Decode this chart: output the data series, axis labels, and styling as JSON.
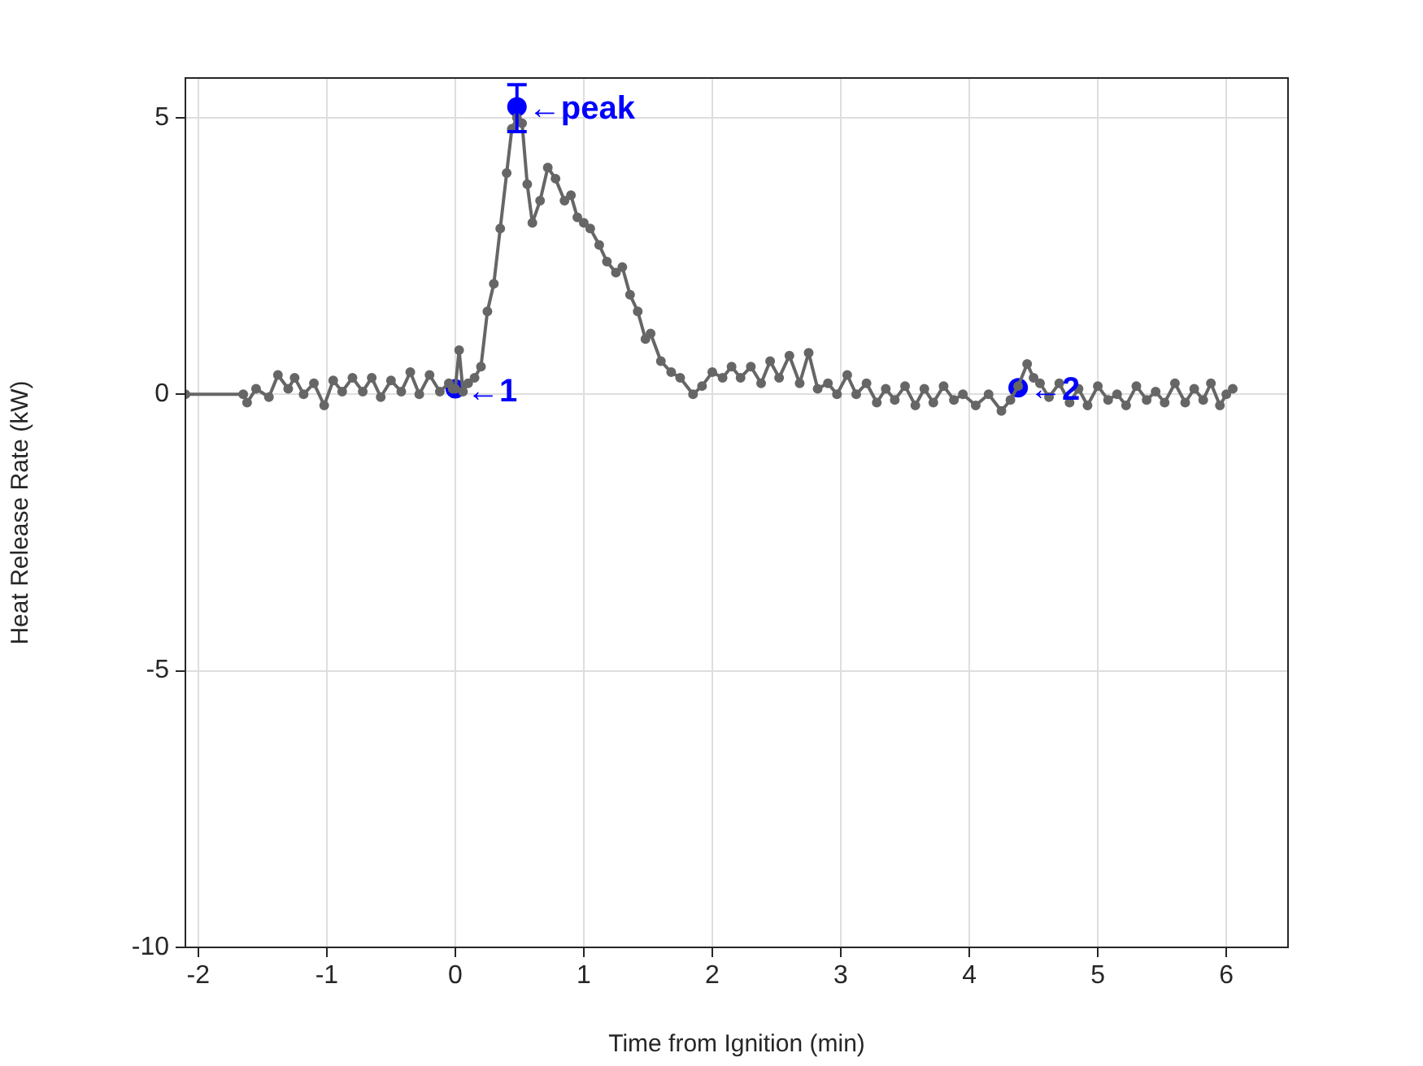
{
  "chart_data": {
    "type": "line",
    "xlabel": "Time from Ignition (min)",
    "ylabel": "Heat Release Rate (kW)",
    "xlim": [
      -2.1,
      6.48
    ],
    "xticks": [
      -2,
      -1,
      0,
      1,
      2,
      3,
      4,
      5,
      6
    ],
    "ylim": [
      -10,
      5.72
    ],
    "yticks": [
      -10,
      -5,
      0,
      5
    ],
    "grid": true,
    "marker": "circle",
    "series": [
      {
        "color": "#666666",
        "x": [
          -2.1,
          -1.65,
          -1.62,
          -1.55,
          -1.45,
          -1.38,
          -1.3,
          -1.25,
          -1.18,
          -1.1,
          -1.02,
          -0.95,
          -0.88,
          -0.8,
          -0.72,
          -0.65,
          -0.58,
          -0.5,
          -0.42,
          -0.35,
          -0.28,
          -0.2,
          -0.12,
          -0.05,
          -0.02,
          0.0,
          0.03,
          0.06,
          0.1,
          0.15,
          0.2,
          0.25,
          0.3,
          0.35,
          0.4,
          0.44,
          0.48,
          0.52,
          0.56,
          0.6,
          0.66,
          0.72,
          0.78,
          0.85,
          0.9,
          0.95,
          1.0,
          1.05,
          1.12,
          1.18,
          1.25,
          1.3,
          1.36,
          1.42,
          1.48,
          1.52,
          1.6,
          1.68,
          1.75,
          1.85,
          1.92,
          2.0,
          2.08,
          2.15,
          2.22,
          2.3,
          2.38,
          2.45,
          2.52,
          2.6,
          2.68,
          2.75,
          2.82,
          2.9,
          2.97,
          3.05,
          3.12,
          3.2,
          3.28,
          3.35,
          3.42,
          3.5,
          3.58,
          3.65,
          3.72,
          3.8,
          3.88,
          3.95,
          4.05,
          4.15,
          4.25,
          4.32,
          4.38,
          4.45,
          4.5,
          4.55,
          4.62,
          4.7,
          4.78,
          4.85,
          4.92,
          5.0,
          5.08,
          5.15,
          5.22,
          5.3,
          5.38,
          5.45,
          5.52,
          5.6,
          5.68,
          5.75,
          5.82,
          5.88,
          5.95,
          6.0,
          6.05
        ],
        "values": [
          0,
          0,
          -0.15,
          0.1,
          -0.05,
          0.35,
          0.1,
          0.3,
          0.0,
          0.2,
          -0.2,
          0.25,
          0.05,
          0.3,
          0.05,
          0.3,
          -0.05,
          0.25,
          0.05,
          0.4,
          0.0,
          0.35,
          0.05,
          0.2,
          0.1,
          0.1,
          0.8,
          0.05,
          0.2,
          0.3,
          0.5,
          1.5,
          2.0,
          3.0,
          4.0,
          4.8,
          5.0,
          4.9,
          3.8,
          3.1,
          3.5,
          4.1,
          3.9,
          3.5,
          3.6,
          3.2,
          3.1,
          3.0,
          2.7,
          2.4,
          2.2,
          2.3,
          1.8,
          1.5,
          1.0,
          1.1,
          0.6,
          0.4,
          0.3,
          0.0,
          0.15,
          0.4,
          0.3,
          0.5,
          0.3,
          0.5,
          0.2,
          0.6,
          0.3,
          0.7,
          0.2,
          0.75,
          0.1,
          0.2,
          0.0,
          0.35,
          0.0,
          0.2,
          -0.15,
          0.1,
          -0.1,
          0.15,
          -0.2,
          0.1,
          -0.15,
          0.15,
          -0.1,
          0.0,
          -0.2,
          0.0,
          -0.3,
          -0.1,
          0.15,
          0.55,
          0.3,
          0.2,
          -0.05,
          0.2,
          -0.15,
          0.1,
          -0.2,
          0.15,
          -0.1,
          0.0,
          -0.2,
          0.15,
          -0.1,
          0.05,
          -0.15,
          0.2,
          -0.15,
          0.1,
          -0.1,
          0.2,
          -0.2,
          0.0,
          0.1
        ]
      },
      {
        "type": "scatter",
        "color": "#0000ff",
        "x": [
          0,
          0.48,
          4.38
        ],
        "values": [
          0.1,
          5.2,
          0.12
        ],
        "errors": [
          null,
          [
            4.75,
            5.6
          ],
          null
        ]
      }
    ],
    "annotations": [
      {
        "text": "←1",
        "x": 0,
        "y": 0.1
      },
      {
        "text": "←peak",
        "x": 0.48,
        "y": 5.2
      },
      {
        "text": "←2",
        "x": 4.38,
        "y": 0.12
      }
    ]
  }
}
